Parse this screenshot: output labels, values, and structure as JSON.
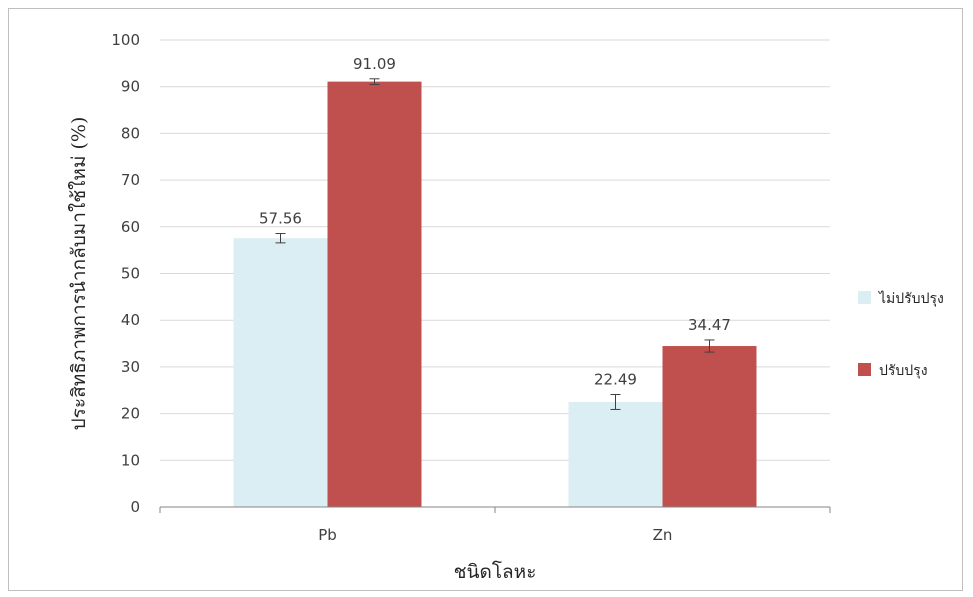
{
  "chart_data": {
    "type": "bar",
    "categories": [
      "Pb",
      "Zn"
    ],
    "series": [
      {
        "name": "ไม่ปรับปรุง",
        "color": "#daeef3",
        "values": [
          57.56,
          22.49
        ],
        "error": [
          1.0,
          1.6
        ]
      },
      {
        "name": "ปรับปรุง",
        "color": "#c0504d",
        "values": [
          91.09,
          34.47
        ],
        "error": [
          0.6,
          1.3
        ]
      }
    ],
    "data_labels": [
      [
        "57.56",
        "22.49"
      ],
      [
        "91.09",
        "34.47"
      ]
    ],
    "xlabel": "ชนิดโลหะ",
    "ylabel": "ประสิทธิภาพการนำกลับมาใช้ใหม่ (%)",
    "ylim": [
      0,
      100
    ],
    "yticks": [
      0,
      10,
      20,
      30,
      40,
      50,
      60,
      70,
      80,
      90,
      100
    ],
    "grid": true,
    "legend_position": "right"
  }
}
